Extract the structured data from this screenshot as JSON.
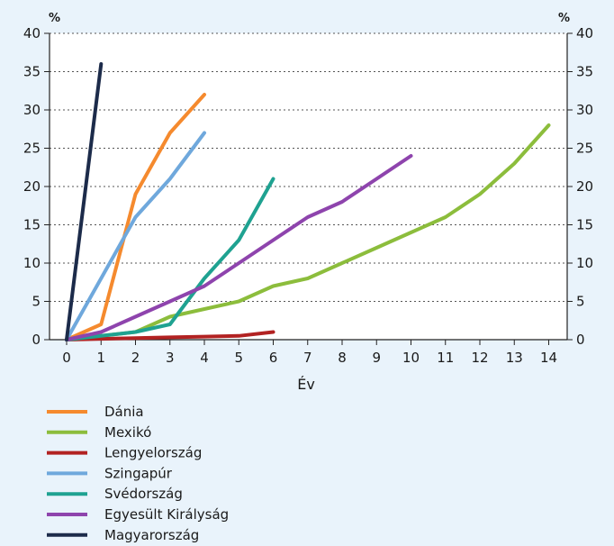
{
  "chart_data": {
    "type": "line",
    "xlabel": "Év",
    "ylabel_left": "%",
    "ylabel_right": "%",
    "xlim": [
      0,
      14
    ],
    "ylim": [
      0,
      40
    ],
    "x_ticks": [
      0,
      1,
      2,
      3,
      4,
      5,
      6,
      7,
      8,
      9,
      10,
      11,
      12,
      13,
      14
    ],
    "y_ticks": [
      0,
      5,
      10,
      15,
      20,
      25,
      30,
      35,
      40
    ],
    "grid": "horizontal dotted",
    "legend_position": "bottom-left",
    "series": [
      {
        "name": "Dánia",
        "color": "#f58a2e",
        "points": [
          [
            0,
            0
          ],
          [
            1,
            2
          ],
          [
            2,
            19
          ],
          [
            3,
            27
          ],
          [
            4,
            32
          ]
        ]
      },
      {
        "name": "Mexikó",
        "color": "#8cbd3c",
        "points": [
          [
            0,
            0
          ],
          [
            1,
            0.5
          ],
          [
            2,
            1
          ],
          [
            3,
            3
          ],
          [
            4,
            4
          ],
          [
            5,
            5
          ],
          [
            6,
            7
          ],
          [
            7,
            8
          ],
          [
            8,
            10
          ],
          [
            9,
            12
          ],
          [
            10,
            14
          ],
          [
            11,
            16
          ],
          [
            12,
            19
          ],
          [
            13,
            23
          ],
          [
            14,
            28
          ]
        ]
      },
      {
        "name": "Lengyelország",
        "color": "#b22222",
        "points": [
          [
            0,
            0
          ],
          [
            1,
            0.1
          ],
          [
            2,
            0.2
          ],
          [
            3,
            0.3
          ],
          [
            4,
            0.4
          ],
          [
            5,
            0.5
          ],
          [
            6,
            1
          ]
        ]
      },
      {
        "name": "Szingapúr",
        "color": "#6fa8dc",
        "points": [
          [
            0,
            0
          ],
          [
            1,
            8
          ],
          [
            2,
            16
          ],
          [
            3,
            21
          ],
          [
            4,
            27
          ]
        ]
      },
      {
        "name": "Svédország",
        "color": "#1fa291",
        "points": [
          [
            0,
            0
          ],
          [
            1,
            0.5
          ],
          [
            2,
            1
          ],
          [
            3,
            2
          ],
          [
            4,
            8
          ],
          [
            5,
            13
          ],
          [
            6,
            21
          ]
        ]
      },
      {
        "name": "Egyesült Királyság",
        "color": "#8e44ad",
        "points": [
          [
            0,
            0
          ],
          [
            1,
            1
          ],
          [
            2,
            3
          ],
          [
            3,
            5
          ],
          [
            4,
            7
          ],
          [
            5,
            10
          ],
          [
            6,
            13
          ],
          [
            7,
            16
          ],
          [
            8,
            18
          ],
          [
            9,
            21
          ],
          [
            10,
            24
          ]
        ]
      },
      {
        "name": "Magyarország",
        "color": "#1c2b4a",
        "points": [
          [
            0,
            0
          ],
          [
            1,
            36
          ]
        ]
      }
    ]
  }
}
